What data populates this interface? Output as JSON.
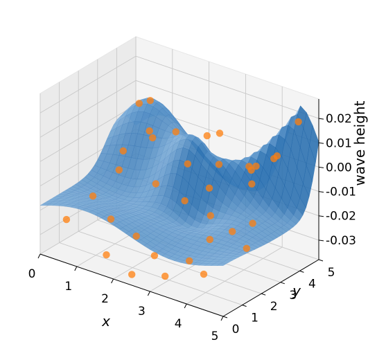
{
  "chart_data": {
    "type": "surface3d",
    "title": "",
    "xlabel": "x",
    "ylabel": "y",
    "zlabel": "wave height",
    "xlim": [
      0,
      5
    ],
    "ylim": [
      0,
      5
    ],
    "zlim": [
      -0.038,
      0.028
    ],
    "grid": true,
    "x_ticks": [
      "0",
      "1",
      "2",
      "3",
      "4",
      "5"
    ],
    "y_ticks": [
      "0",
      "1",
      "2",
      "3",
      "4",
      "5"
    ],
    "z_ticks": [
      "0.02",
      "0.01",
      "0.00",
      "-0.01",
      "-0.02",
      "-0.03"
    ],
    "z_tick_values": [
      0.02,
      0.01,
      0.0,
      -0.01,
      -0.02,
      -0.03
    ],
    "surface_color": "#5a9fd4",
    "surface_edge_color": "#2f6fb0",
    "point_color": "#ff7f0e",
    "surface_description": "",
    "scatter_points": [
      {
        "x": 0.3,
        "y": 4.6,
        "z": 0.004
      },
      {
        "x": 0.55,
        "y": 4.7,
        "z": 0.006
      },
      {
        "x": 1.2,
        "y": 4.8,
        "z": -0.004
      },
      {
        "x": 2.0,
        "y": 4.9,
        "z": -0.002
      },
      {
        "x": 2.5,
        "y": 4.6,
        "z": 0.003
      },
      {
        "x": 3.2,
        "y": 4.8,
        "z": -0.008
      },
      {
        "x": 3.6,
        "y": 4.4,
        "z": -0.004
      },
      {
        "x": 4.6,
        "y": 4.7,
        "z": 0.018
      },
      {
        "x": 4.4,
        "y": 3.8,
        "z": 0.006
      },
      {
        "x": 4.8,
        "y": 3.2,
        "z": 0.012
      },
      {
        "x": 4.2,
        "y": 3.0,
        "z": 0.004
      },
      {
        "x": 1.4,
        "y": 3.2,
        "z": 0.002
      },
      {
        "x": 2.2,
        "y": 3.5,
        "z": -0.006
      },
      {
        "x": 1.8,
        "y": 2.6,
        "z": -0.012
      },
      {
        "x": 0.9,
        "y": 2.4,
        "z": -0.01
      },
      {
        "x": 0.5,
        "y": 1.8,
        "z": -0.02
      },
      {
        "x": 1.2,
        "y": 1.4,
        "z": -0.024
      },
      {
        "x": 2.0,
        "y": 1.2,
        "z": -0.026
      },
      {
        "x": 2.6,
        "y": 1.0,
        "z": -0.03
      },
      {
        "x": 3.1,
        "y": 0.6,
        "z": -0.034
      },
      {
        "x": 3.5,
        "y": 1.1,
        "z": -0.028
      },
      {
        "x": 3.8,
        "y": 1.6,
        "z": -0.02
      },
      {
        "x": 4.1,
        "y": 2.2,
        "z": -0.018
      },
      {
        "x": 4.5,
        "y": 2.5,
        "z": -0.014
      },
      {
        "x": 3.4,
        "y": 2.4,
        "z": -0.016
      },
      {
        "x": 2.8,
        "y": 2.2,
        "z": -0.012
      },
      {
        "x": 0.3,
        "y": 0.8,
        "z": -0.026
      },
      {
        "x": 1.6,
        "y": 0.4,
        "z": -0.032
      },
      {
        "x": 2.4,
        "y": 0.2,
        "z": -0.035
      },
      {
        "x": 4.0,
        "y": 0.9,
        "z": -0.03
      },
      {
        "x": 3.9,
        "y": 3.6,
        "z": -0.006
      },
      {
        "x": 2.9,
        "y": 3.8,
        "z": -0.004
      },
      {
        "x": 1.0,
        "y": 3.8,
        "z": 0.0
      },
      {
        "x": 4.7,
        "y": 1.8,
        "z": -0.02
      },
      {
        "x": 0.7,
        "y": 3.0,
        "z": -0.006
      },
      {
        "x": 3.0,
        "y": 3.1,
        "z": -0.01
      }
    ]
  }
}
